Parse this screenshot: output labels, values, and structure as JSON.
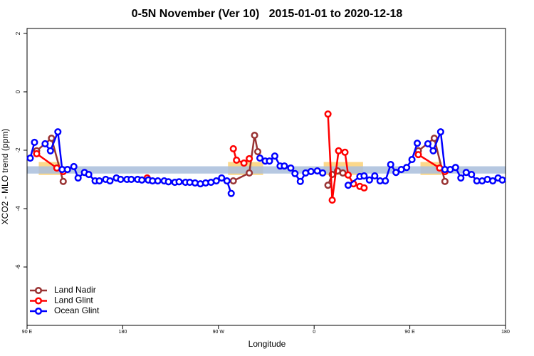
{
  "chart_data": {
    "type": "line",
    "title": "0-5N November (Ver 10)   2015-01-01 to 2020-12-18",
    "x_label": "Longitude",
    "y_label": "XCO2 - MLO trend (ppm)",
    "xlim": [
      90,
      540
    ],
    "ylim": [
      -8,
      2.17
    ],
    "xticks": [
      {
        "value": 90,
        "label": "90 E"
      },
      {
        "value": 180,
        "label": "180"
      },
      {
        "value": 270,
        "label": "90 W"
      },
      {
        "value": 360,
        "label": "0"
      },
      {
        "value": 450,
        "label": "90 E"
      },
      {
        "value": 540,
        "label": "180"
      }
    ],
    "yticks": [
      2,
      0,
      -2,
      -4,
      -6
    ],
    "band": [
      -2.8,
      -2.55
    ],
    "band_color": "#a9bedc",
    "highlights": [
      [
        101,
        121
      ],
      [
        279,
        312
      ],
      [
        369,
        406
      ],
      [
        460,
        480
      ]
    ],
    "highlight_color": "#fcd88a",
    "legend": "bottom-left",
    "series": [
      {
        "name": "Land Nadir",
        "color": "#993333",
        "x": [
          99,
          113,
          124,
          null,
          284,
          299,
          304,
          307,
          null,
          373,
          377,
          382,
          387,
          null,
          458,
          473,
          483
        ],
        "values": [
          -2.02,
          -1.59,
          -3.07,
          null,
          -3.05,
          -2.78,
          -1.49,
          -2.05,
          null,
          -3.2,
          -2.83,
          -2.71,
          -2.78,
          null,
          -2.02,
          -1.59,
          -3.07
        ]
      },
      {
        "name": "Land Glint",
        "color": "#ff0000",
        "x": [
          99,
          118,
          124,
          null,
          203,
          null,
          284,
          287,
          294,
          299,
          null,
          373,
          377,
          383,
          389,
          392,
          397,
          403,
          407,
          null,
          458,
          478,
          483
        ],
        "values": [
          -2.12,
          -2.61,
          -2.73,
          null,
          -2.95,
          null,
          -1.95,
          -2.34,
          -2.44,
          -2.29,
          null,
          -0.76,
          -3.71,
          -2.02,
          -2.07,
          -2.85,
          -3.15,
          -3.24,
          -3.29,
          null,
          -2.15,
          -2.61,
          -2.73
        ]
      },
      {
        "name": "Ocean Glint",
        "color": "#0000ff",
        "x": [
          93,
          97,
          null,
          107,
          112,
          119,
          123,
          128,
          134,
          138,
          144,
          148,
          154,
          158,
          164,
          168,
          174,
          178,
          184,
          188,
          194,
          198,
          204,
          208,
          213,
          219,
          223,
          229,
          233,
          239,
          243,
          248,
          253,
          258,
          263,
          268,
          273,
          278,
          282,
          null,
          309,
          314,
          318,
          323,
          328,
          332,
          338,
          342,
          347,
          352,
          357,
          363,
          368,
          null,
          392,
          403,
          407,
          412,
          417,
          422,
          427,
          432,
          437,
          442,
          447,
          452,
          457,
          null,
          467,
          472,
          479,
          483,
          488,
          493,
          498,
          503,
          508,
          513,
          518,
          523,
          528,
          533,
          537
        ],
        "values": [
          -2.27,
          -1.73,
          null,
          -1.78,
          -2.02,
          -1.37,
          -2.66,
          -2.66,
          -2.56,
          -2.95,
          -2.76,
          -2.83,
          -3.05,
          -3.05,
          -3.0,
          -3.05,
          -2.95,
          -3.0,
          -3.0,
          -3.0,
          -3.0,
          -3.02,
          -3.02,
          -3.05,
          -3.05,
          -3.05,
          -3.08,
          -3.1,
          -3.08,
          -3.1,
          -3.1,
          -3.12,
          -3.15,
          -3.12,
          -3.1,
          -3.05,
          -2.95,
          -3.05,
          -3.48,
          null,
          -2.27,
          -2.37,
          -2.37,
          -2.2,
          -2.54,
          -2.54,
          -2.61,
          -2.8,
          -3.07,
          -2.78,
          -2.73,
          -2.71,
          -2.78,
          null,
          -3.2,
          -2.9,
          -2.88,
          -3.02,
          -2.88,
          -3.05,
          -3.05,
          -2.49,
          -2.76,
          -2.66,
          -2.59,
          -2.32,
          -1.76,
          null,
          -1.78,
          -2.02,
          -1.37,
          -2.66,
          -2.66,
          -2.59,
          -2.95,
          -2.76,
          -2.83,
          -3.05,
          -3.05,
          -3.0,
          -3.05,
          -2.95,
          -3.02
        ]
      }
    ]
  }
}
